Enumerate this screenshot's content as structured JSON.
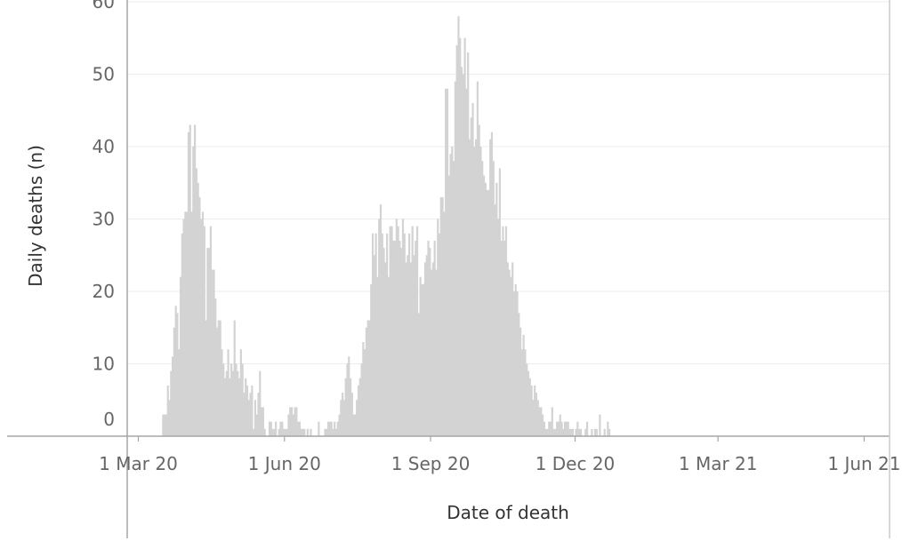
{
  "chart_data": {
    "type": "bar",
    "title": "",
    "xlabel": "Date of death",
    "ylabel": "Daily deaths (n)",
    "ylim": [
      0,
      60
    ],
    "y_ticks": [
      0,
      10,
      20,
      30,
      40,
      50,
      60
    ],
    "x_ticks": [
      {
        "date": "2020-03-01",
        "label": "1 Mar 20"
      },
      {
        "date": "2020-06-01",
        "label": "1 Jun 20"
      },
      {
        "date": "2020-09-01",
        "label": "1 Sep 20"
      },
      {
        "date": "2020-12-01",
        "label": "1 Dec 20"
      },
      {
        "date": "2021-03-01",
        "label": "1 Mar 21"
      },
      {
        "date": "2021-06-01",
        "label": "1 Jun 21"
      }
    ],
    "xlim": [
      "2020-02-23",
      "2021-06-17"
    ],
    "grid": true,
    "bar_color": "#d3d3d3",
    "x_start": "2020-03-16",
    "values": [
      3,
      3,
      3,
      7,
      5,
      9,
      11,
      15,
      18,
      17,
      12,
      22,
      28,
      30,
      31,
      31,
      42,
      43,
      31,
      40,
      43,
      37,
      35,
      33,
      30,
      31,
      29,
      16,
      26,
      26,
      29,
      23,
      23,
      19,
      15,
      16,
      16,
      12,
      10,
      8,
      9,
      12,
      8,
      10,
      9,
      16,
      10,
      9,
      8,
      12,
      10,
      6,
      8,
      7,
      5,
      6,
      7,
      1,
      5,
      3,
      6,
      9,
      4,
      4,
      1,
      0,
      0,
      2,
      2,
      1,
      1,
      2,
      0,
      1,
      2,
      2,
      1,
      1,
      1,
      3,
      4,
      4,
      3,
      4,
      4,
      2,
      2,
      1,
      1,
      1,
      0,
      1,
      0,
      1,
      0,
      0,
      0,
      0,
      2,
      0,
      0,
      0,
      1,
      1,
      2,
      2,
      2,
      1,
      2,
      1,
      2,
      3,
      5,
      6,
      5,
      8,
      10,
      11,
      8,
      6,
      3,
      3,
      5,
      7,
      8,
      10,
      13,
      12,
      15,
      16,
      16,
      21,
      28,
      25,
      28,
      22,
      30,
      32,
      28,
      26,
      24,
      28,
      22,
      29,
      29,
      27,
      27,
      30,
      29,
      27,
      26,
      30,
      28,
      24,
      25,
      28,
      24,
      29,
      25,
      27,
      29,
      17,
      22,
      21,
      21,
      24,
      25,
      27,
      26,
      23,
      24,
      27,
      23,
      30,
      28,
      33,
      33,
      31,
      48,
      48,
      36,
      39,
      40,
      38,
      49,
      54,
      58,
      55,
      51,
      50,
      55,
      48,
      53,
      41,
      44,
      46,
      40,
      41,
      49,
      43,
      40,
      38,
      36,
      35,
      34,
      34,
      41,
      42,
      38,
      32,
      35,
      30,
      37,
      27,
      29,
      27,
      29,
      24,
      23,
      22,
      24,
      20,
      21,
      20,
      17,
      15,
      12,
      14,
      12,
      10,
      9,
      8,
      7,
      5,
      7,
      6,
      5,
      4,
      4,
      3,
      2,
      1,
      1,
      2,
      2,
      4,
      1,
      1,
      2,
      2,
      3,
      2,
      1,
      2,
      2,
      2,
      1,
      1,
      1,
      0,
      1,
      2,
      1,
      1,
      0,
      0,
      1,
      2,
      0,
      0,
      1,
      0,
      1,
      1,
      0,
      3,
      0,
      0,
      1,
      0,
      2,
      1,
      0
    ]
  }
}
